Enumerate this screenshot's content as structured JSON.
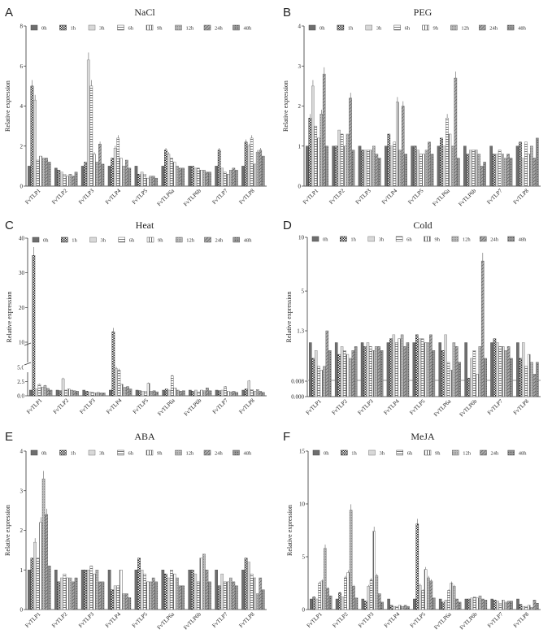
{
  "legend_labels": [
    "0h",
    "1h",
    "3h",
    "6h",
    "9h",
    "12h",
    "24h",
    "48h"
  ],
  "chart_data": [
    {
      "panel": "A",
      "title": "NaCl",
      "type": "bar",
      "ylabel": "Relative expression",
      "ylim": [
        0,
        8
      ],
      "yticks": [
        "0",
        "2",
        "4",
        "6",
        "8"
      ],
      "categories": [
        "FvTLP1",
        "FvTLP2",
        "FvTLP3",
        "FvTLP4",
        "FvTLP5",
        "FvTLP6a",
        "FvTLP6b",
        "FvTLP7",
        "FvTLP8"
      ],
      "series": [
        {
          "name": "0h",
          "values": [
            1.0,
            0.9,
            1.0,
            1.0,
            1.0,
            1.0,
            1.0,
            1.0,
            1.0
          ]
        },
        {
          "name": "1h",
          "values": [
            5.0,
            0.8,
            1.2,
            1.4,
            0.6,
            1.8,
            1.0,
            1.8,
            2.2
          ]
        },
        {
          "name": "3h",
          "values": [
            4.3,
            0.7,
            6.3,
            1.9,
            0.7,
            1.6,
            0.9,
            0.9,
            2.0
          ]
        },
        {
          "name": "6h",
          "values": [
            1.3,
            0.6,
            5.0,
            2.4,
            0.6,
            1.4,
            0.9,
            0.7,
            2.4
          ]
        },
        {
          "name": "9h",
          "values": [
            1.5,
            0.5,
            1.6,
            1.4,
            0.4,
            1.2,
            0.8,
            0.6,
            1.1
          ]
        },
        {
          "name": "12h",
          "values": [
            1.4,
            0.6,
            1.2,
            1.0,
            0.5,
            1.0,
            0.8,
            0.8,
            1.7
          ]
        },
        {
          "name": "24h",
          "values": [
            1.4,
            0.5,
            2.1,
            1.3,
            0.5,
            0.9,
            0.7,
            0.9,
            1.8
          ]
        },
        {
          "name": "48h",
          "values": [
            1.2,
            0.7,
            1.1,
            0.9,
            0.4,
            0.9,
            0.7,
            0.8,
            1.5
          ]
        }
      ]
    },
    {
      "panel": "B",
      "title": "PEG",
      "type": "bar",
      "ylabel": "Relative expression",
      "ylim": [
        0,
        4
      ],
      "yticks": [
        "0",
        "1",
        "2",
        "3",
        "4"
      ],
      "categories": [
        "FvTLP1",
        "FvTLP2",
        "FvTLP3",
        "FvTLP4",
        "FvTLP5",
        "FvTLP6a",
        "FvTLP6b",
        "FvTLP7",
        "FvTLP8"
      ],
      "series": [
        {
          "name": "0h",
          "values": [
            1.0,
            1.0,
            1.0,
            1.0,
            1.0,
            1.0,
            1.0,
            1.0,
            1.0
          ]
        },
        {
          "name": "1h",
          "values": [
            1.7,
            1.0,
            0.9,
            1.3,
            1.0,
            1.2,
            0.8,
            0.8,
            1.1
          ]
        },
        {
          "name": "3h",
          "values": [
            2.5,
            1.4,
            0.9,
            1.0,
            0.9,
            1.0,
            0.9,
            0.8,
            0.7
          ]
        },
        {
          "name": "6h",
          "values": [
            1.5,
            1.3,
            0.9,
            1.1,
            0.8,
            1.7,
            0.9,
            0.9,
            1.1
          ]
        },
        {
          "name": "9h",
          "values": [
            1.2,
            1.0,
            0.9,
            2.1,
            0.8,
            1.3,
            0.9,
            0.8,
            0.8
          ]
        },
        {
          "name": "12h",
          "values": [
            1.8,
            1.3,
            1.0,
            0.9,
            0.9,
            1.0,
            0.8,
            0.7,
            1.0
          ]
        },
        {
          "name": "24h",
          "values": [
            2.8,
            2.2,
            0.8,
            2.0,
            1.1,
            2.7,
            0.5,
            0.8,
            0.7
          ]
        },
        {
          "name": "48h",
          "values": [
            1.0,
            0.9,
            0.7,
            0.8,
            0.8,
            0.7,
            0.6,
            0.7,
            1.2
          ]
        }
      ]
    },
    {
      "panel": "C",
      "title": "Heat",
      "type": "bar",
      "ylabel": "Relative expression",
      "ylim": [
        0,
        40
      ],
      "yticks": [
        "0.0",
        "2.5",
        "5.0",
        "10",
        "20",
        "30",
        "40"
      ],
      "categories": [
        "FvTLP1",
        "FvTLP2",
        "FvTLP3",
        "FvTLP4",
        "FvTLP5",
        "FvTLP6a",
        "FvTLP6b",
        "FvTLP7",
        "FvTLP8"
      ],
      "series": [
        {
          "name": "0h",
          "values": [
            1.0,
            1.0,
            1.0,
            1.0,
            1.0,
            1.0,
            1.0,
            1.0,
            1.0
          ]
        },
        {
          "name": "1h",
          "values": [
            35.0,
            0.9,
            0.8,
            13.0,
            0.9,
            1.2,
            0.8,
            0.9,
            1.2
          ]
        },
        {
          "name": "3h",
          "values": [
            1.2,
            3.0,
            0.7,
            4.8,
            0.8,
            1.0,
            1.0,
            1.0,
            2.6
          ]
        },
        {
          "name": "6h",
          "values": [
            2.0,
            1.0,
            0.6,
            4.5,
            0.8,
            3.5,
            0.7,
            1.6,
            1.1
          ]
        },
        {
          "name": "9h",
          "values": [
            1.5,
            1.2,
            0.5,
            2.0,
            2.2,
            1.4,
            1.0,
            0.8,
            0.8
          ]
        },
        {
          "name": "12h",
          "values": [
            1.8,
            1.0,
            0.6,
            1.5,
            0.8,
            1.0,
            0.9,
            0.7,
            1.1
          ]
        },
        {
          "name": "24h",
          "values": [
            1.3,
            0.9,
            0.5,
            1.6,
            0.9,
            0.8,
            1.4,
            0.8,
            0.8
          ]
        },
        {
          "name": "48h",
          "values": [
            1.0,
            0.8,
            0.5,
            1.2,
            0.7,
            0.9,
            0.9,
            0.6,
            0.6
          ]
        }
      ]
    },
    {
      "panel": "D",
      "title": "Cold",
      "type": "bar",
      "ylabel": "Relative expression",
      "ylim": [
        0,
        10
      ],
      "yticks": [
        "0.000",
        "0.008",
        "1.3",
        "5",
        "10"
      ],
      "categories": [
        "FvTLP1",
        "FvTLP2",
        "FvTLP3",
        "FvTLP4",
        "FvTLP5",
        "FvTLP6a",
        "FvTLP6b",
        "FvTLP7",
        "FvTLP8"
      ],
      "series": [
        {
          "name": "0h",
          "values": [
            1.0,
            1.0,
            1.0,
            1.0,
            1.0,
            1.0,
            1.0,
            1.0,
            1.0
          ]
        },
        {
          "name": "1h",
          "values": [
            0.6,
            0.7,
            0.9,
            1.1,
            1.2,
            0.8,
            0.1,
            1.1,
            0.6
          ]
        },
        {
          "name": "3h",
          "values": [
            0.8,
            0.9,
            1.0,
            1.2,
            1.1,
            1.2,
            0.6,
            1.0,
            1.0
          ]
        },
        {
          "name": "6h",
          "values": [
            0.4,
            0.8,
            0.9,
            1.0,
            1.1,
            0.5,
            0.8,
            0.9,
            0.4
          ]
        },
        {
          "name": "9h",
          "values": [
            0.3,
            0.7,
            0.8,
            1.1,
            1.0,
            0.3,
            0.2,
            0.9,
            0.7
          ]
        },
        {
          "name": "12h",
          "values": [
            0.4,
            0.6,
            0.9,
            1.2,
            1.0,
            1.0,
            0.9,
            0.8,
            0.5
          ]
        },
        {
          "name": "24h",
          "values": [
            1.3,
            0.8,
            0.9,
            0.9,
            1.2,
            0.9,
            7.8,
            0.9,
            0.2
          ]
        },
        {
          "name": "48h",
          "values": [
            0.8,
            0.9,
            0.8,
            1.0,
            0.8,
            0.5,
            0.6,
            0.6,
            0.5
          ]
        }
      ]
    },
    {
      "panel": "E",
      "title": "ABA",
      "type": "bar",
      "ylabel": "Relative expression",
      "ylim": [
        0,
        4
      ],
      "yticks": [
        "0",
        "1",
        "2",
        "3",
        "4"
      ],
      "categories": [
        "FvTLP1",
        "FvTLP2",
        "FvTLP3",
        "FvTLP4",
        "FvTLP5",
        "FvTLP6a",
        "FvTLP6b",
        "FvTLP7",
        "FvTLP8"
      ],
      "series": [
        {
          "name": "0h",
          "values": [
            1.0,
            1.0,
            1.0,
            1.0,
            1.0,
            1.0,
            1.0,
            1.0,
            1.0
          ]
        },
        {
          "name": "1h",
          "values": [
            1.3,
            0.7,
            1.0,
            0.5,
            1.3,
            0.9,
            1.0,
            0.6,
            1.3
          ]
        },
        {
          "name": "3h",
          "values": [
            1.7,
            0.8,
            1.0,
            0.6,
            1.0,
            0.8,
            0.9,
            0.9,
            1.2
          ]
        },
        {
          "name": "6h",
          "values": [
            1.3,
            0.9,
            1.1,
            0.6,
            0.9,
            1.0,
            0.7,
            0.7,
            0.9
          ]
        },
        {
          "name": "9h",
          "values": [
            2.2,
            0.8,
            0.9,
            1.0,
            0.7,
            0.9,
            1.3,
            0.7,
            0.8
          ]
        },
        {
          "name": "12h",
          "values": [
            3.3,
            0.8,
            1.0,
            0.4,
            0.7,
            0.8,
            1.4,
            0.8,
            0.4
          ]
        },
        {
          "name": "24h",
          "values": [
            2.4,
            0.7,
            0.7,
            0.4,
            0.8,
            0.6,
            1.0,
            0.7,
            0.8
          ]
        },
        {
          "name": "48h",
          "values": [
            1.1,
            0.8,
            0.7,
            0.3,
            0.7,
            0.6,
            0.7,
            0.6,
            0.5
          ]
        }
      ]
    },
    {
      "panel": "F",
      "title": "MeJA",
      "type": "bar",
      "ylabel": "Relative expression",
      "ylim": [
        0,
        15
      ],
      "yticks": [
        "0",
        "5",
        "10",
        "15"
      ],
      "categories": [
        "FvTLP1",
        "FvTLP2",
        "FvTLP3",
        "FvTLP4",
        "FvTLP5",
        "FvTLP6a",
        "FvTLP6b",
        "FvTLP7",
        "FvTLP8"
      ],
      "series": [
        {
          "name": "0h",
          "values": [
            1.0,
            1.0,
            1.0,
            1.0,
            1.0,
            1.0,
            1.0,
            1.0,
            1.0
          ]
        },
        {
          "name": "1h",
          "values": [
            1.2,
            1.6,
            0.8,
            0.4,
            8.1,
            0.7,
            1.0,
            0.9,
            0.5
          ]
        },
        {
          "name": "3h",
          "values": [
            1.0,
            1.2,
            2.2,
            0.3,
            2.3,
            0.9,
            1.1,
            0.8,
            0.3
          ]
        },
        {
          "name": "6h",
          "values": [
            2.5,
            3.0,
            2.8,
            0.3,
            1.8,
            1.8,
            1.2,
            0.6,
            0.3
          ]
        },
        {
          "name": "9h",
          "values": [
            2.7,
            3.5,
            7.4,
            0.4,
            3.8,
            2.5,
            1.1,
            0.9,
            0.4
          ]
        },
        {
          "name": "12h",
          "values": [
            5.8,
            9.4,
            3.2,
            0.3,
            3.0,
            2.2,
            1.3,
            0.7,
            0.2
          ]
        },
        {
          "name": "24h",
          "values": [
            2.0,
            2.2,
            1.5,
            0.4,
            2.7,
            1.0,
            1.0,
            0.8,
            0.9
          ]
        },
        {
          "name": "48h",
          "values": [
            1.3,
            1.1,
            0.7,
            0.3,
            1.1,
            0.7,
            0.9,
            0.8,
            0.6
          ]
        }
      ]
    }
  ]
}
